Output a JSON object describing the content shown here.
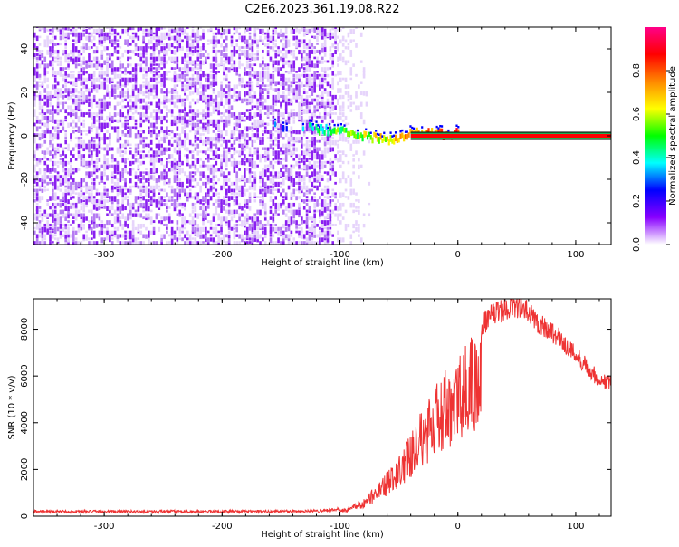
{
  "title": "C2E6.2023.361.19.08.R22",
  "chart_data": [
    {
      "type": "heatmap",
      "name": "spectrogram",
      "xlabel": "Height of straight line (km)",
      "ylabel": "Frequency (Hz)",
      "xlim": [
        -360,
        130
      ],
      "ylim": [
        -50,
        50
      ],
      "xticks": [
        -300,
        -200,
        -100,
        0,
        100
      ],
      "yticks": [
        -40,
        -20,
        0,
        20,
        40
      ],
      "colorbar": {
        "label": "Normalized spectral amplitude",
        "range": [
          0,
          1
        ],
        "ticks": [
          0.0,
          0.2,
          0.4,
          0.6,
          0.8
        ],
        "colors": [
          "#ffffff",
          "#8800ff",
          "#0000ff",
          "#00ffff",
          "#00ff00",
          "#ffff00",
          "#ff8800",
          "#ff0000",
          "#ff0088"
        ]
      },
      "noise_extent_km": [
        -360,
        -100
      ],
      "signal_track": {
        "heights_km": [
          -160,
          -140,
          -120,
          -100,
          -90,
          -80,
          -70,
          -60,
          -50,
          -40,
          -30,
          -20,
          -10,
          0,
          130
        ],
        "freq_hz": [
          3,
          3,
          2,
          1,
          0,
          -1,
          -2,
          -3,
          -2,
          0,
          0,
          0,
          0,
          0,
          0
        ]
      },
      "carrier_line": {
        "x_range_km": [
          -40,
          130
        ],
        "freq_hz": 0,
        "color": "#ff0000"
      }
    },
    {
      "type": "line",
      "name": "snr",
      "xlabel": "Height of straight line (km)",
      "ylabel": "SNR (10 * v/v)",
      "xlim": [
        -360,
        130
      ],
      "ylim": [
        0,
        9300
      ],
      "xticks": [
        -300,
        -200,
        -100,
        0,
        100
      ],
      "yticks": [
        0,
        2000,
        4000,
        6000,
        8000
      ],
      "series": [
        {
          "name": "SNR",
          "color": "#ee3333",
          "x": [
            -360,
            -300,
            -250,
            -200,
            -150,
            -120,
            -100,
            -90,
            -80,
            -70,
            -60,
            -50,
            -40,
            -30,
            -20,
            -10,
            0,
            10,
            20,
            30,
            40,
            50,
            60,
            70,
            80,
            90,
            100,
            110,
            120,
            130
          ],
          "y": [
            200,
            200,
            200,
            200,
            210,
            220,
            300,
            450,
            800,
            1300,
            1900,
            2600,
            3600,
            4600,
            5500,
            6300,
            7000,
            7700,
            8200,
            8600,
            8900,
            9000,
            8700,
            8200,
            7900,
            7400,
            6900,
            6400,
            5800,
            5700
          ]
        }
      ]
    }
  ]
}
